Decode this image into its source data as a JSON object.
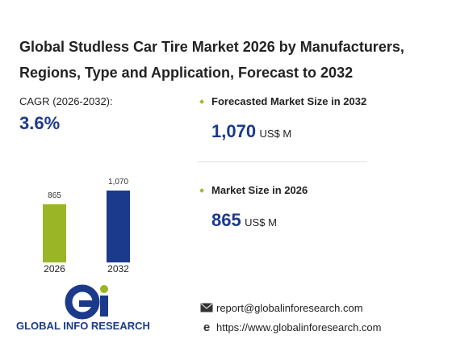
{
  "title": "Global Studless Car Tire Market 2026 by Manufacturers, Regions, Type and Application, Forecast to 2032",
  "cagr": {
    "label": "CAGR",
    "period": "(2026-2032):",
    "value": "3.6%"
  },
  "chart_data": {
    "type": "bar",
    "categories": [
      "2026",
      "2032"
    ],
    "values": [
      865,
      1070
    ],
    "value_labels": [
      "865",
      "1,070"
    ],
    "colors": [
      "#9ab526",
      "#1c3a8c"
    ]
  },
  "stats": [
    {
      "label": "Forecasted Market Size in 2032",
      "value": "1,070",
      "unit": "US$ M"
    },
    {
      "label": "Market Size in 2026",
      "value": "865",
      "unit": "US$ M"
    }
  ],
  "logo": {
    "text": "GLOBAL INFO RESEARCH"
  },
  "contact": {
    "email": "report@globalinforesearch.com",
    "website": "https://www.globalinforesearch.com"
  }
}
